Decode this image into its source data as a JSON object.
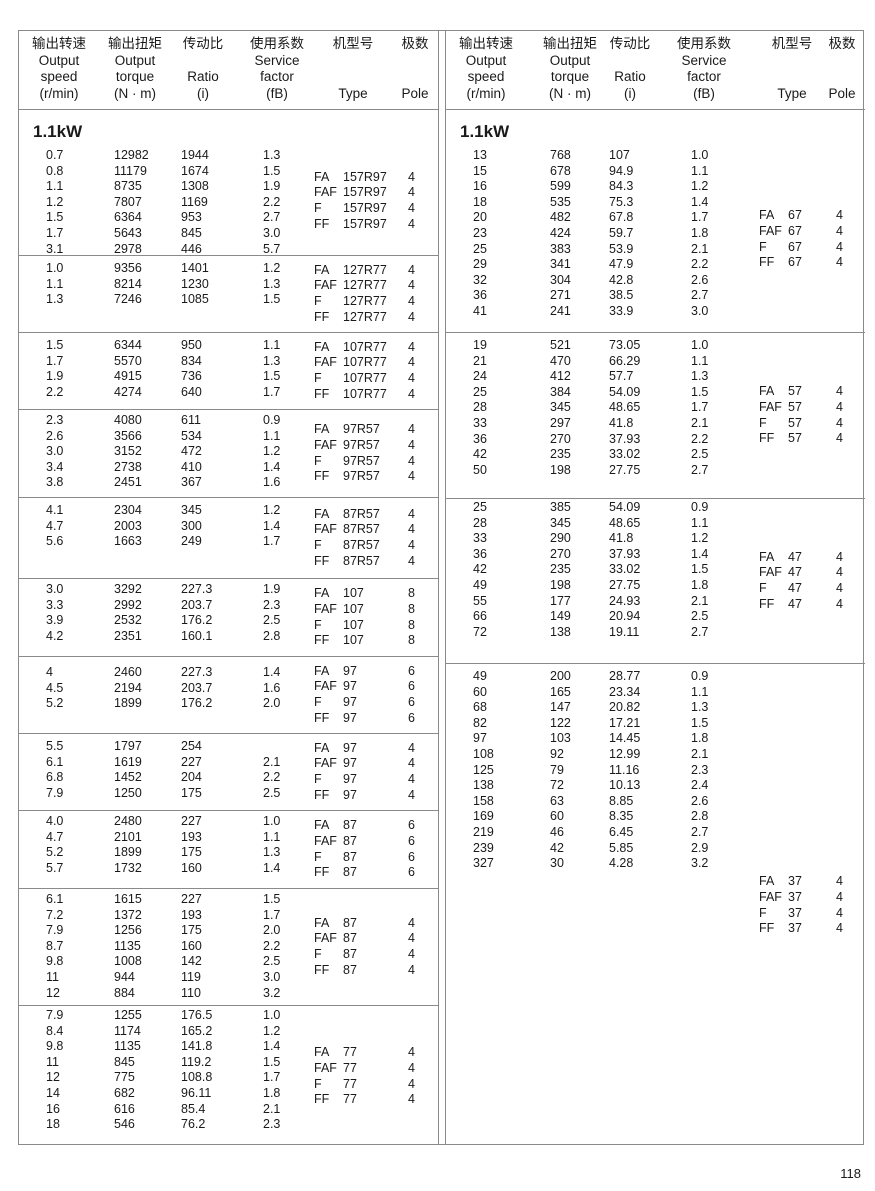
{
  "header": {
    "columns": [
      {
        "cn": "输出转速",
        "en": [
          "Output",
          "speed",
          "(r/min)"
        ]
      },
      {
        "cn": "输出扭矩",
        "en": [
          "Output",
          "torque",
          "(N · m)"
        ]
      },
      {
        "cn": "传动比",
        "en": [
          "Ratio",
          "(i)"
        ]
      },
      {
        "cn": "使用系数",
        "en": [
          "Service",
          "factor",
          "(fB)"
        ]
      },
      {
        "cn": "机型号",
        "en": [
          "Type"
        ]
      },
      {
        "cn": "极数",
        "en": [
          "Pole"
        ]
      }
    ]
  },
  "left": {
    "title": "1.1kW",
    "groups": [
      {
        "rows": [
          [
            "0.7",
            "12982",
            "1944",
            "1.3"
          ],
          [
            "0.8",
            "11179",
            "1674",
            "1.5"
          ],
          [
            "1.1",
            "8735",
            "1308",
            "1.9"
          ],
          [
            "1.2",
            "7807",
            "1169",
            "2.2"
          ],
          [
            "1.5",
            "6364",
            "953",
            "2.7"
          ],
          [
            "1.7",
            "5643",
            "845",
            "3.0"
          ],
          [
            "3.1",
            "2978",
            "446",
            "5.7"
          ]
        ],
        "types": [
          {
            "prefix": "FA",
            "model": "157R97",
            "pole": "4"
          },
          {
            "prefix": "FAF",
            "model": "157R97",
            "pole": "4"
          },
          {
            "prefix": "F",
            "model": "157R97",
            "pole": "4"
          },
          {
            "prefix": "FF",
            "model": "157R97",
            "pole": "4"
          }
        ]
      },
      {
        "rows": [
          [
            "1.0",
            "9356",
            "1401",
            "1.2"
          ],
          [
            "1.1",
            "8214",
            "1230",
            "1.3"
          ],
          [
            "1.3",
            "7246",
            "1085",
            "1.5"
          ]
        ],
        "types": [
          {
            "prefix": "FA",
            "model": "127R77",
            "pole": "4"
          },
          {
            "prefix": "FAF",
            "model": "127R77",
            "pole": "4"
          },
          {
            "prefix": "F",
            "model": "127R77",
            "pole": "4"
          },
          {
            "prefix": "FF",
            "model": "127R77",
            "pole": "4"
          }
        ]
      },
      {
        "rows": [
          [
            "1.5",
            "6344",
            "950",
            "1.1"
          ],
          [
            "1.7",
            "5570",
            "834",
            "1.3"
          ],
          [
            "1.9",
            "4915",
            "736",
            "1.5"
          ],
          [
            "2.2",
            "4274",
            "640",
            "1.7"
          ]
        ],
        "types": [
          {
            "prefix": "FA",
            "model": "107R77",
            "pole": "4"
          },
          {
            "prefix": "FAF",
            "model": "107R77",
            "pole": "4"
          },
          {
            "prefix": "F",
            "model": "107R77",
            "pole": "4"
          },
          {
            "prefix": "FF",
            "model": "107R77",
            "pole": "4"
          }
        ]
      },
      {
        "rows": [
          [
            "2.3",
            "4080",
            "611",
            "0.9"
          ],
          [
            "2.6",
            "3566",
            "534",
            "1.1"
          ],
          [
            "3.0",
            "3152",
            "472",
            "1.2"
          ],
          [
            "3.4",
            "2738",
            "410",
            "1.4"
          ],
          [
            "3.8",
            "2451",
            "367",
            "1.6"
          ]
        ],
        "types": [
          {
            "prefix": "FA",
            "model": "97R57",
            "pole": "4"
          },
          {
            "prefix": "FAF",
            "model": "97R57",
            "pole": "4"
          },
          {
            "prefix": "F",
            "model": "97R57",
            "pole": "4"
          },
          {
            "prefix": "FF",
            "model": "97R57",
            "pole": "4"
          }
        ]
      },
      {
        "rows": [
          [
            "4.1",
            "2304",
            "345",
            "1.2"
          ],
          [
            "4.7",
            "2003",
            "300",
            "1.4"
          ],
          [
            "5.6",
            "1663",
            "249",
            "1.7"
          ]
        ],
        "types": [
          {
            "prefix": "FA",
            "model": "87R57",
            "pole": "4"
          },
          {
            "prefix": "FAF",
            "model": "87R57",
            "pole": "4"
          },
          {
            "prefix": "F",
            "model": "87R57",
            "pole": "4"
          },
          {
            "prefix": "FF",
            "model": "87R57",
            "pole": "4"
          }
        ]
      },
      {
        "rows": [
          [
            "3.0",
            "3292",
            "227.3",
            "1.9"
          ],
          [
            "3.3",
            "2992",
            "203.7",
            "2.3"
          ],
          [
            "3.9",
            "2532",
            "176.2",
            "2.5"
          ],
          [
            "4.2",
            "2351",
            "160.1",
            "2.8"
          ]
        ],
        "types": [
          {
            "prefix": "FA",
            "model": "107",
            "pole": "8"
          },
          {
            "prefix": "FAF",
            "model": "107",
            "pole": "8"
          },
          {
            "prefix": "F",
            "model": "107",
            "pole": "8"
          },
          {
            "prefix": "FF",
            "model": "107",
            "pole": "8"
          }
        ]
      },
      {
        "rows": [
          [
            "4",
            "2460",
            "227.3",
            "1.4"
          ],
          [
            "4.5",
            "2194",
            "203.7",
            "1.6"
          ],
          [
            "5.2",
            "1899",
            "176.2",
            "2.0"
          ]
        ],
        "types": [
          {
            "prefix": "FA",
            "model": "97",
            "pole": "6"
          },
          {
            "prefix": "FAF",
            "model": "97",
            "pole": "6"
          },
          {
            "prefix": "F",
            "model": "97",
            "pole": "6"
          },
          {
            "prefix": "FF",
            "model": "97",
            "pole": "6"
          }
        ]
      },
      {
        "rows": [
          [
            "5.5",
            "1797",
            "254",
            ""
          ],
          [
            "6.1",
            "1619",
            "227",
            "2.1"
          ],
          [
            "6.8",
            "1452",
            "204",
            "2.2"
          ],
          [
            "7.9",
            "1250",
            "175",
            "2.5"
          ]
        ],
        "types": [
          {
            "prefix": "FA",
            "model": "97",
            "pole": "4"
          },
          {
            "prefix": "FAF",
            "model": "97",
            "pole": "4"
          },
          {
            "prefix": "F",
            "model": "97",
            "pole": "4"
          },
          {
            "prefix": "FF",
            "model": "97",
            "pole": "4"
          }
        ]
      },
      {
        "rows": [
          [
            "4.0",
            "2480",
            "227",
            "1.0"
          ],
          [
            "4.7",
            "2101",
            "193",
            "1.1"
          ],
          [
            "5.2",
            "1899",
            "175",
            "1.3"
          ],
          [
            "5.7",
            "1732",
            "160",
            "1.4"
          ]
        ],
        "types": [
          {
            "prefix": "FA",
            "model": "87",
            "pole": "6"
          },
          {
            "prefix": "FAF",
            "model": "87",
            "pole": "6"
          },
          {
            "prefix": "F",
            "model": "87",
            "pole": "6"
          },
          {
            "prefix": "FF",
            "model": "87",
            "pole": "6"
          }
        ]
      },
      {
        "rows": [
          [
            "6.1",
            "1615",
            "227",
            "1.5"
          ],
          [
            "7.2",
            "1372",
            "193",
            "1.7"
          ],
          [
            "7.9",
            "1256",
            "175",
            "2.0"
          ],
          [
            "8.7",
            "1135",
            "160",
            "2.2"
          ],
          [
            "9.8",
            "1008",
            "142",
            "2.5"
          ],
          [
            "11",
            "944",
            "119",
            "3.0"
          ],
          [
            "12",
            "884",
            "110",
            "3.2"
          ]
        ],
        "types": [
          {
            "prefix": "FA",
            "model": "87",
            "pole": "4"
          },
          {
            "prefix": "FAF",
            "model": "87",
            "pole": "4"
          },
          {
            "prefix": "F",
            "model": "87",
            "pole": "4"
          },
          {
            "prefix": "FF",
            "model": "87",
            "pole": "4"
          }
        ]
      },
      {
        "rows": [
          [
            "7.9",
            "1255",
            "176.5",
            "1.0"
          ],
          [
            "8.4",
            "1174",
            "165.2",
            "1.2"
          ],
          [
            "9.8",
            "1135",
            "141.8",
            "1.4"
          ],
          [
            "11",
            "845",
            "119.2",
            "1.5"
          ],
          [
            "12",
            "775",
            "108.8",
            "1.7"
          ],
          [
            "14",
            "682",
            "96.11",
            "1.8"
          ],
          [
            "16",
            "616",
            "85.4",
            "2.1"
          ],
          [
            "18",
            "546",
            "76.2",
            "2.3"
          ]
        ],
        "types": [
          {
            "prefix": "FA",
            "model": "77",
            "pole": "4"
          },
          {
            "prefix": "FAF",
            "model": "77",
            "pole": "4"
          },
          {
            "prefix": "F",
            "model": "77",
            "pole": "4"
          },
          {
            "prefix": "FF",
            "model": "77",
            "pole": "4"
          }
        ]
      }
    ]
  },
  "right": {
    "title": "1.1kW",
    "groups": [
      {
        "rows": [
          [
            "13",
            "768",
            "107",
            "1.0"
          ],
          [
            "15",
            "678",
            "94.9",
            "1.1"
          ],
          [
            "16",
            "599",
            "84.3",
            "1.2"
          ],
          [
            "18",
            "535",
            "75.3",
            "1.4"
          ],
          [
            "20",
            "482",
            "67.8",
            "1.7"
          ],
          [
            "23",
            "424",
            "59.7",
            "1.8"
          ],
          [
            "25",
            "383",
            "53.9",
            "2.1"
          ],
          [
            "29",
            "341",
            "47.9",
            "2.2"
          ],
          [
            "32",
            "304",
            "42.8",
            "2.6"
          ],
          [
            "36",
            "271",
            "38.5",
            "2.7"
          ],
          [
            "41",
            "241",
            "33.9",
            "3.0"
          ]
        ],
        "types": [
          {
            "prefix": "FA",
            "model": "67",
            "pole": "4"
          },
          {
            "prefix": "FAF",
            "model": "67",
            "pole": "4"
          },
          {
            "prefix": "F",
            "model": "67",
            "pole": "4"
          },
          {
            "prefix": "FF",
            "model": "67",
            "pole": "4"
          }
        ]
      },
      {
        "rows": [
          [
            "19",
            "521",
            "73.05",
            "1.0"
          ],
          [
            "21",
            "470",
            "66.29",
            "1.1"
          ],
          [
            "24",
            "412",
            "57.7",
            "1.3"
          ],
          [
            "25",
            "384",
            "54.09",
            "1.5"
          ],
          [
            "28",
            "345",
            "48.65",
            "1.7"
          ],
          [
            "33",
            "297",
            "41.8",
            "2.1"
          ],
          [
            "36",
            "270",
            "37.93",
            "2.2"
          ],
          [
            "42",
            "235",
            "33.02",
            "2.5"
          ],
          [
            "50",
            "198",
            "27.75",
            "2.7"
          ]
        ],
        "types": [
          {
            "prefix": "FA",
            "model": "57",
            "pole": "4"
          },
          {
            "prefix": "FAF",
            "model": "57",
            "pole": "4"
          },
          {
            "prefix": "F",
            "model": "57",
            "pole": "4"
          },
          {
            "prefix": "FF",
            "model": "57",
            "pole": "4"
          }
        ]
      },
      {
        "rows": [
          [
            "25",
            "385",
            "54.09",
            "0.9"
          ],
          [
            "28",
            "345",
            "48.65",
            "1.1"
          ],
          [
            "33",
            "290",
            "41.8",
            "1.2"
          ],
          [
            "36",
            "270",
            "37.93",
            "1.4"
          ],
          [
            "42",
            "235",
            "33.02",
            "1.5"
          ],
          [
            "49",
            "198",
            "27.75",
            "1.8"
          ],
          [
            "55",
            "177",
            "24.93",
            "2.1"
          ],
          [
            "66",
            "149",
            "20.94",
            "2.5"
          ],
          [
            "72",
            "138",
            "19.11",
            "2.7"
          ]
        ],
        "types": [
          {
            "prefix": "FA",
            "model": "47",
            "pole": "4"
          },
          {
            "prefix": "FAF",
            "model": "47",
            "pole": "4"
          },
          {
            "prefix": "F",
            "model": "47",
            "pole": "4"
          },
          {
            "prefix": "FF",
            "model": "47",
            "pole": "4"
          }
        ]
      },
      {
        "rows": [
          [
            "49",
            "200",
            "28.77",
            "0.9"
          ],
          [
            "60",
            "165",
            "23.34",
            "1.1"
          ],
          [
            "68",
            "147",
            "20.82",
            "1.3"
          ],
          [
            "82",
            "122",
            "17.21",
            "1.5"
          ],
          [
            "97",
            "103",
            "14.45",
            "1.8"
          ],
          [
            "108",
            "92",
            "12.99",
            "2.1"
          ],
          [
            "125",
            "79",
            "11.16",
            "2.3"
          ],
          [
            "138",
            "72",
            "10.13",
            "2.4"
          ],
          [
            "158",
            "63",
            "8.85",
            "2.6"
          ],
          [
            "169",
            "60",
            "8.35",
            "2.8"
          ],
          [
            "219",
            "46",
            "6.45",
            "2.7"
          ],
          [
            "239",
            "42",
            "5.85",
            "2.9"
          ],
          [
            "327",
            "30",
            "4.28",
            "3.2"
          ]
        ],
        "types": [
          {
            "prefix": "FA",
            "model": "37",
            "pole": "4"
          },
          {
            "prefix": "FAF",
            "model": "37",
            "pole": "4"
          },
          {
            "prefix": "F",
            "model": "37",
            "pole": "4"
          },
          {
            "prefix": "FF",
            "model": "37",
            "pole": "4"
          }
        ]
      }
    ]
  },
  "page_number": "118"
}
